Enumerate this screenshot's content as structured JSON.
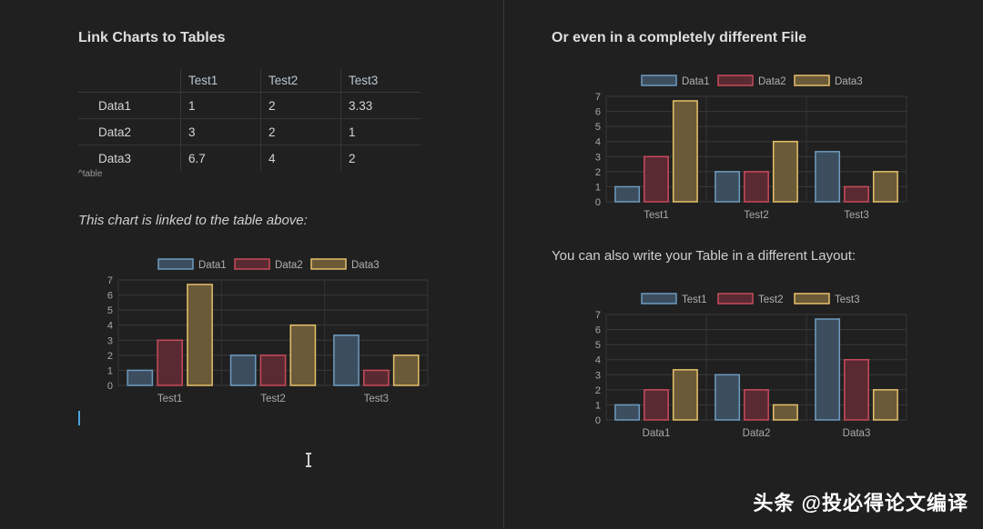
{
  "left": {
    "title": "Link Charts to Tables",
    "table": {
      "headers": [
        "",
        "Test1",
        "Test2",
        "Test3"
      ],
      "rows": [
        [
          "Data1",
          "1",
          "2",
          "3.33"
        ],
        [
          "Data2",
          "3",
          "2",
          "1"
        ],
        [
          "Data3",
          "6.7",
          "4",
          "2"
        ]
      ],
      "caption": "^table"
    },
    "chart_caption": "This chart is linked to the table above:"
  },
  "right": {
    "title": "Or even in a completely different File",
    "layout_text": "You can also write your Table in a different Layout:"
  },
  "watermark": "头条 @投必得论文编译",
  "colors": {
    "blue_fill": "#3c4e5e",
    "blue_stroke": "#6d9bc0",
    "red_fill": "#5a2a33",
    "red_stroke": "#c74a5b",
    "yellow_fill": "#6a5a38",
    "yellow_stroke": "#e6c06a"
  },
  "chart_data": [
    {
      "type": "bar",
      "categories": [
        "Test1",
        "Test2",
        "Test3"
      ],
      "series": [
        {
          "name": "Data1",
          "values": [
            1,
            2,
            3.33
          ]
        },
        {
          "name": "Data2",
          "values": [
            3,
            2,
            1
          ]
        },
        {
          "name": "Data3",
          "values": [
            6.7,
            4,
            2
          ]
        }
      ],
      "ylim": [
        0,
        7
      ],
      "yticks": [
        0,
        1,
        2,
        3,
        4,
        5,
        6,
        7
      ],
      "legend": "top",
      "grid": true
    },
    {
      "type": "bar",
      "categories": [
        "Test1",
        "Test2",
        "Test3"
      ],
      "series": [
        {
          "name": "Data1",
          "values": [
            1,
            2,
            3.33
          ]
        },
        {
          "name": "Data2",
          "values": [
            3,
            2,
            1
          ]
        },
        {
          "name": "Data3",
          "values": [
            6.7,
            4,
            2
          ]
        }
      ],
      "ylim": [
        0,
        7
      ],
      "yticks": [
        0,
        1,
        2,
        3,
        4,
        5,
        6,
        7
      ],
      "legend": "top",
      "grid": true
    },
    {
      "type": "bar",
      "categories": [
        "Data1",
        "Data2",
        "Data3"
      ],
      "series": [
        {
          "name": "Test1",
          "values": [
            1,
            3,
            6.7
          ]
        },
        {
          "name": "Test2",
          "values": [
            2,
            2,
            4
          ]
        },
        {
          "name": "Test3",
          "values": [
            3.33,
            1,
            2
          ]
        }
      ],
      "ylim": [
        0,
        7
      ],
      "yticks": [
        0,
        1,
        2,
        3,
        4,
        5,
        6,
        7
      ],
      "legend": "top",
      "grid": true
    }
  ]
}
